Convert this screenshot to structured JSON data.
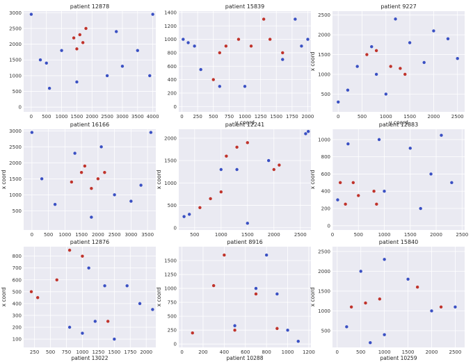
{
  "chart_data": [
    {
      "type": "scatter",
      "title": "patient 12878",
      "xlabel": "",
      "ylabel": "",
      "xlim": [
        -250,
        4100
      ],
      "ylim": [
        -150,
        3050
      ],
      "xticks": [
        0,
        500,
        1000,
        1500,
        2000,
        2500,
        3000,
        3500,
        4000
      ],
      "yticks": [
        0,
        500,
        1000,
        1500,
        2000,
        2500,
        3000
      ],
      "colors": {
        "non_idc": "#3A50C3",
        "idc": "#C0332B"
      },
      "series": [
        {
          "role": "non_idc",
          "points": [
            [
              0,
              2950
            ],
            [
              4000,
              2950
            ],
            [
              500,
              1400
            ],
            [
              1000,
              1800
            ],
            [
              1500,
              800
            ],
            [
              2500,
              1000
            ],
            [
              3000,
              1300
            ],
            [
              3500,
              1800
            ],
            [
              600,
              600
            ],
            [
              2800,
              2400
            ],
            [
              3900,
              1000
            ],
            [
              300,
              1500
            ]
          ]
        },
        {
          "role": "idc",
          "points": [
            [
              1400,
              2200
            ],
            [
              1800,
              2500
            ],
            [
              1500,
              1850
            ],
            [
              1700,
              2050
            ],
            [
              1600,
              2300
            ]
          ]
        }
      ]
    },
    {
      "type": "scatter",
      "title": "patient 15839",
      "xlabel": "y coord",
      "ylabel": "",
      "xlim": [
        -50,
        2050
      ],
      "ylim": [
        -80,
        1420
      ],
      "xticks": [
        0,
        250,
        500,
        750,
        1000,
        1250,
        1500,
        1750,
        2000
      ],
      "yticks": [
        0,
        200,
        400,
        600,
        800,
        1000,
        1200,
        1400
      ],
      "series": [
        {
          "role": "non_idc",
          "points": [
            [
              20,
              1000
            ],
            [
              100,
              950
            ],
            [
              200,
              900
            ],
            [
              300,
              550
            ],
            [
              600,
              300
            ],
            [
              1000,
              300
            ],
            [
              1600,
              700
            ],
            [
              1800,
              1300
            ],
            [
              1900,
              900
            ],
            [
              2000,
              1000
            ]
          ]
        },
        {
          "role": "idc",
          "points": [
            [
              500,
              400
            ],
            [
              600,
              800
            ],
            [
              700,
              900
            ],
            [
              900,
              1000
            ],
            [
              1100,
              900
            ],
            [
              1300,
              1300
            ],
            [
              1400,
              1000
            ],
            [
              1600,
              800
            ]
          ]
        }
      ]
    },
    {
      "type": "scatter",
      "title": "patient 9227",
      "xlabel": "y coord",
      "ylabel": "x coord",
      "xlim": [
        -120,
        2650
      ],
      "ylim": [
        50,
        2600
      ],
      "xticks": [
        0,
        500,
        1000,
        1500,
        2000,
        2500
      ],
      "yticks": [
        500,
        1000,
        1500,
        2000,
        2500
      ],
      "series": [
        {
          "role": "non_idc",
          "points": [
            [
              0,
              300
            ],
            [
              200,
              600
            ],
            [
              400,
              1200
            ],
            [
              700,
              1700
            ],
            [
              1200,
              2400
            ],
            [
              1500,
              1800
            ],
            [
              1800,
              1300
            ],
            [
              2000,
              2100
            ],
            [
              2300,
              1900
            ],
            [
              1000,
              500
            ],
            [
              800,
              1000
            ],
            [
              2500,
              1400
            ]
          ]
        },
        {
          "role": "idc",
          "points": [
            [
              600,
              1500
            ],
            [
              800,
              1600
            ],
            [
              1100,
              1200
            ],
            [
              1300,
              1150
            ],
            [
              1400,
              1000
            ]
          ]
        }
      ]
    },
    {
      "type": "scatter",
      "title": "patient 16166",
      "xlabel": "",
      "ylabel": "x coord",
      "xlim": [
        -250,
        3750
      ],
      "ylim": [
        -100,
        3050
      ],
      "xticks": [
        0,
        500,
        1000,
        1500,
        2000,
        2500,
        3000,
        3500
      ],
      "yticks": [
        500,
        1000,
        1500,
        2000,
        2500,
        3000
      ],
      "series": [
        {
          "role": "non_idc",
          "points": [
            [
              0,
              2950
            ],
            [
              3600,
              2950
            ],
            [
              300,
              1500
            ],
            [
              700,
              700
            ],
            [
              1300,
              2300
            ],
            [
              2500,
              1000
            ],
            [
              3300,
              1300
            ],
            [
              3000,
              800
            ],
            [
              1800,
              300
            ],
            [
              2100,
              2500
            ]
          ]
        },
        {
          "role": "idc",
          "points": [
            [
              1200,
              1400
            ],
            [
              1500,
              1700
            ],
            [
              1800,
              1200
            ],
            [
              2000,
              1500
            ],
            [
              2200,
              1700
            ],
            [
              1600,
              1900
            ]
          ]
        }
      ]
    },
    {
      "type": "scatter",
      "title": "patient 12241",
      "xlabel": "",
      "ylabel": "x coord",
      "xlim": [
        200,
        2700
      ],
      "ylim": [
        -50,
        2200
      ],
      "xticks": [
        500,
        1000,
        1500,
        2000,
        2500
      ],
      "yticks": [
        0,
        500,
        1000,
        1500,
        2000
      ],
      "series": [
        {
          "role": "non_idc",
          "points": [
            [
              300,
              250
            ],
            [
              400,
              300
            ],
            [
              1000,
              1300
            ],
            [
              1300,
              1300
            ],
            [
              1500,
              100
            ],
            [
              1900,
              1500
            ],
            [
              2600,
              2100
            ],
            [
              2650,
              2150
            ]
          ]
        },
        {
          "role": "idc",
          "points": [
            [
              600,
              450
            ],
            [
              800,
              650
            ],
            [
              1000,
              800
            ],
            [
              1100,
              1600
            ],
            [
              1300,
              1800
            ],
            [
              1500,
              1900
            ],
            [
              2000,
              1300
            ],
            [
              2100,
              1400
            ]
          ]
        }
      ]
    },
    {
      "type": "scatter",
      "title": "patient 12883",
      "xlabel": "",
      "ylabel": "x coord",
      "xlim": [
        0,
        2550
      ],
      "ylim": [
        -50,
        1120
      ],
      "xticks": [
        0,
        500,
        1000,
        1500,
        2000,
        2500
      ],
      "yticks": [
        0,
        200,
        400,
        600,
        800,
        1000
      ],
      "series": [
        {
          "role": "non_idc",
          "points": [
            [
              100,
              300
            ],
            [
              300,
              950
            ],
            [
              900,
              1000
            ],
            [
              1000,
              400
            ],
            [
              1500,
              900
            ],
            [
              1700,
              200
            ],
            [
              1900,
              600
            ],
            [
              2100,
              1050
            ],
            [
              2300,
              500
            ]
          ]
        },
        {
          "role": "idc",
          "points": [
            [
              150,
              500
            ],
            [
              250,
              250
            ],
            [
              400,
              500
            ],
            [
              500,
              350
            ],
            [
              800,
              400
            ],
            [
              850,
              250
            ]
          ]
        }
      ]
    },
    {
      "type": "scatter",
      "title": "patient 12876",
      "xlabel": "patient 13022",
      "ylabel": "x coord",
      "xlim": [
        80,
        2150
      ],
      "ylim": [
        30,
        880
      ],
      "xticks": [
        250,
        500,
        750,
        1000,
        1250,
        1500,
        1750,
        2000
      ],
      "yticks": [
        100,
        200,
        300,
        400,
        500,
        600,
        700,
        800
      ],
      "series": [
        {
          "role": "non_idc",
          "points": [
            [
              800,
              200
            ],
            [
              1000,
              150
            ],
            [
              1100,
              700
            ],
            [
              1200,
              250
            ],
            [
              1350,
              550
            ],
            [
              1500,
              100
            ],
            [
              1700,
              550
            ],
            [
              1900,
              400
            ],
            [
              2100,
              350
            ]
          ]
        },
        {
          "role": "idc",
          "points": [
            [
              200,
              500
            ],
            [
              300,
              450
            ],
            [
              600,
              600
            ],
            [
              800,
              850
            ],
            [
              1000,
              800
            ],
            [
              1400,
              250
            ]
          ]
        }
      ]
    },
    {
      "type": "scatter",
      "title": "patient 8916",
      "xlabel": "patient 10288",
      "ylabel": "x coord",
      "xlim": [
        -30,
        1220
      ],
      "ylim": [
        -60,
        1750
      ],
      "xticks": [
        0,
        200,
        400,
        600,
        800,
        1000,
        1200
      ],
      "yticks": [
        0,
        250,
        500,
        750,
        1000,
        1250,
        1500
      ],
      "series": [
        {
          "role": "non_idc",
          "points": [
            [
              500,
              330
            ],
            [
              700,
              1000
            ],
            [
              800,
              1600
            ],
            [
              900,
              900
            ],
            [
              1000,
              250
            ],
            [
              1100,
              50
            ]
          ]
        },
        {
          "role": "idc",
          "points": [
            [
              100,
              200
            ],
            [
              300,
              1050
            ],
            [
              400,
              1600
            ],
            [
              500,
              250
            ],
            [
              700,
              900
            ],
            [
              900,
              280
            ]
          ]
        }
      ]
    },
    {
      "type": "scatter",
      "title": "patient 15840",
      "xlabel": "patient 10259",
      "ylabel": "x coord",
      "xlim": [
        -100,
        2700
      ],
      "ylim": [
        80,
        2620
      ],
      "xticks": [
        0,
        500,
        1000,
        1500,
        2000,
        2500
      ],
      "yticks": [
        500,
        1000,
        1500,
        2000,
        2500
      ],
      "series": [
        {
          "role": "non_idc",
          "points": [
            [
              200,
              600
            ],
            [
              500,
              2000
            ],
            [
              1000,
              2300
            ],
            [
              1500,
              1800
            ],
            [
              2000,
              1000
            ],
            [
              2500,
              1100
            ],
            [
              1000,
              400
            ],
            [
              700,
              200
            ]
          ]
        },
        {
          "role": "idc",
          "points": [
            [
              300,
              1100
            ],
            [
              600,
              1200
            ],
            [
              900,
              1300
            ],
            [
              1700,
              1600
            ],
            [
              2200,
              1100
            ]
          ]
        }
      ]
    }
  ]
}
